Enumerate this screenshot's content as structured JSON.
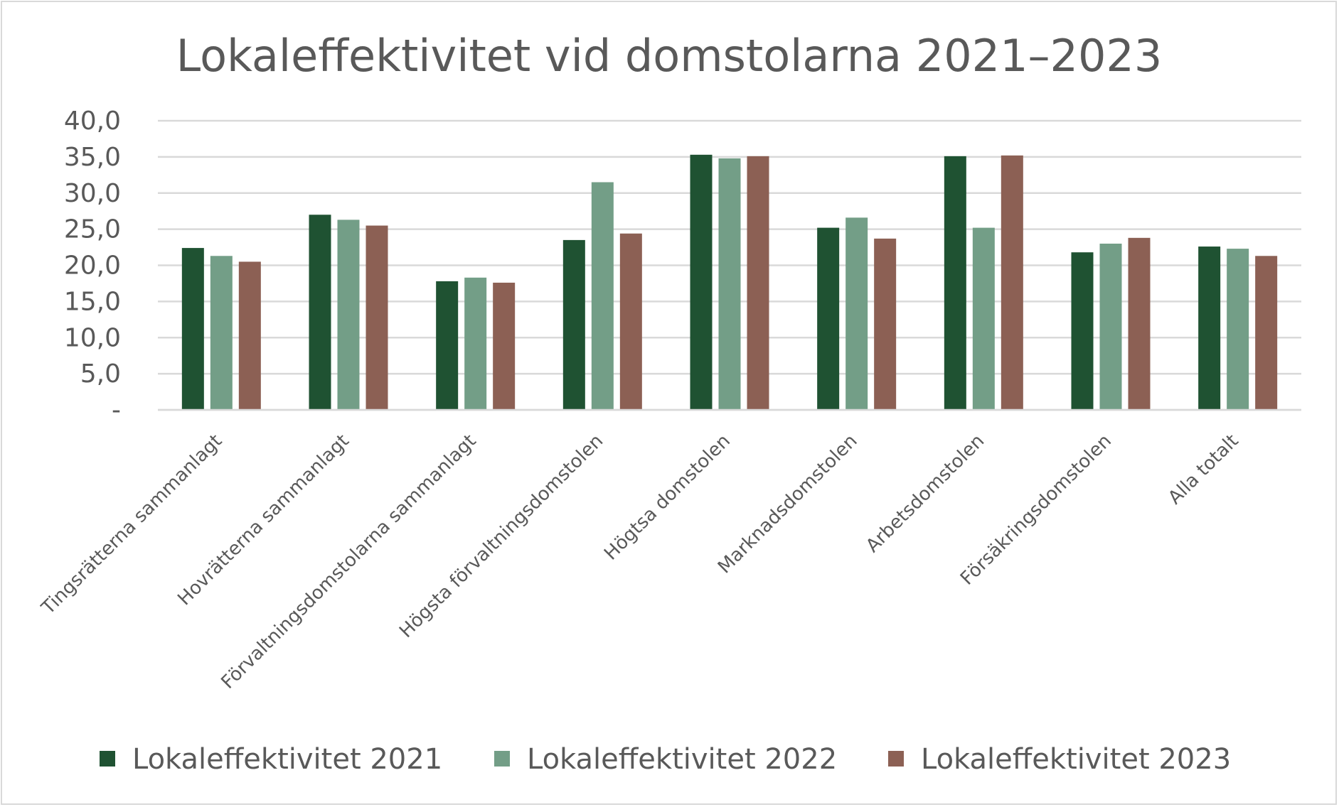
{
  "chart_data": {
    "type": "bar",
    "title": "Lokaleffektivitet vid domstolarna 2021–2023",
    "xlabel": "",
    "ylabel": "",
    "categories": [
      "Tingsrätterna sammanlagt",
      "Hovrätterna sammanlagt",
      "Förvaltningsdomstolarna sammanlagt",
      "Högsta förvaltningsdomstolen",
      "Högtsa domstolen",
      "Marknadsdomstolen",
      "Arbetsdomstolen",
      "Försäkringsdomstolen",
      "Alla totalt"
    ],
    "series": [
      {
        "name": "Lokaleffektivitet 2021",
        "color": "#1f5232",
        "values": [
          22.4,
          27.0,
          17.8,
          23.5,
          35.3,
          25.2,
          35.1,
          21.8,
          22.6
        ]
      },
      {
        "name": "Lokaleffektivitet 2022",
        "color": "#739e87",
        "values": [
          21.3,
          26.3,
          18.3,
          31.5,
          34.8,
          26.6,
          25.2,
          23.0,
          22.3
        ]
      },
      {
        "name": "Lokaleffektivitet 2023",
        "color": "#8c6054",
        "values": [
          20.5,
          25.5,
          17.6,
          24.4,
          35.1,
          23.7,
          35.2,
          23.8,
          21.3
        ]
      }
    ],
    "ylim": [
      0,
      40
    ],
    "yticks": [
      "-",
      "5,0",
      "10,0",
      "15,0",
      "20,0",
      "25,0",
      "30,0",
      "35,0",
      "40,0"
    ],
    "grid": true,
    "legend": "bottom"
  }
}
